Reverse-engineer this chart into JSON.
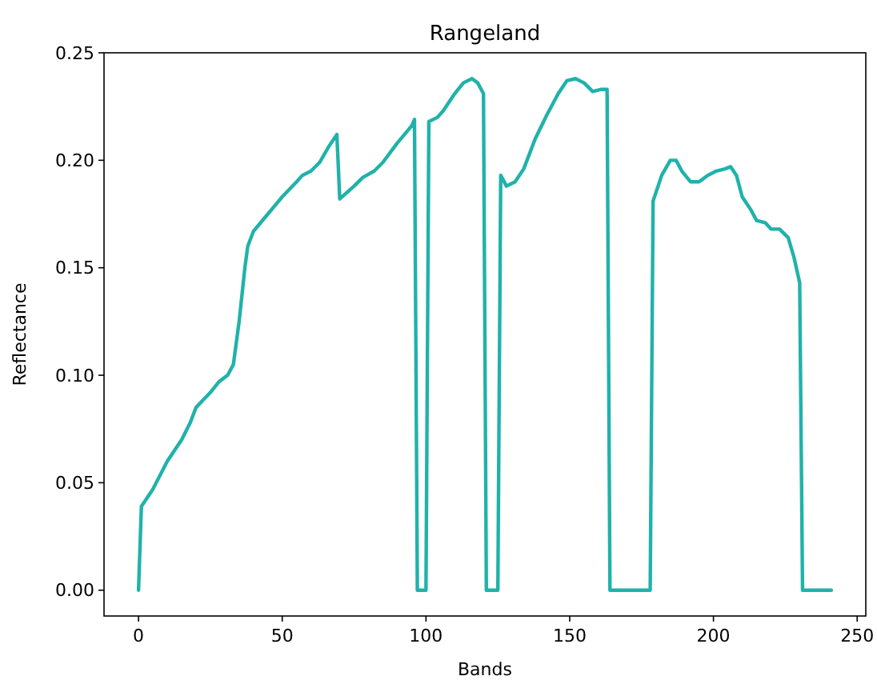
{
  "chart_data": {
    "type": "line",
    "title": "Rangeland",
    "xlabel": "Bands",
    "ylabel": "Reflectance",
    "xlim": [
      -12,
      253
    ],
    "ylim": [
      -0.012,
      0.25
    ],
    "xticks": [
      0,
      50,
      100,
      150,
      200,
      250
    ],
    "yticks": [
      {
        "value": 0,
        "label": "0.00"
      },
      {
        "value": 0.05,
        "label": "0.05"
      },
      {
        "value": 0.1,
        "label": "0.10"
      },
      {
        "value": 0.15,
        "label": "0.15"
      },
      {
        "value": 0.2,
        "label": "0.20"
      },
      {
        "value": 0.25,
        "label": "0.25"
      }
    ],
    "grid": false,
    "marker": "none",
    "line_style": "solid",
    "series": [
      {
        "color": "#20b2aa",
        "x": [
          0,
          1,
          5,
          10,
          15,
          18,
          20,
          25,
          28,
          31,
          33,
          35,
          37,
          38,
          40,
          45,
          50,
          55,
          57,
          60,
          63,
          66,
          69,
          70,
          75,
          78,
          82,
          85,
          90,
          95,
          96,
          97,
          100,
          101,
          104,
          106,
          110,
          113,
          116,
          118,
          120,
          121,
          125,
          126,
          128,
          131,
          134,
          138,
          142,
          146,
          149,
          152,
          155,
          158,
          161,
          163,
          164,
          178,
          179,
          182,
          185,
          187,
          189,
          192,
          195,
          198,
          201,
          204,
          206,
          208,
          210,
          213,
          215,
          218,
          220,
          223,
          226,
          228,
          230,
          231,
          241
        ],
        "values": [
          0,
          0.039,
          0.047,
          0.06,
          0.07,
          0.078,
          0.085,
          0.092,
          0.097,
          0.1,
          0.105,
          0.125,
          0.15,
          0.16,
          0.167,
          0.175,
          0.183,
          0.19,
          0.193,
          0.195,
          0.199,
          0.206,
          0.212,
          0.182,
          0.188,
          0.192,
          0.195,
          0.199,
          0.208,
          0.216,
          0.219,
          0,
          0,
          0.218,
          0.22,
          0.223,
          0.231,
          0.236,
          0.238,
          0.236,
          0.231,
          0,
          0,
          0.193,
          0.188,
          0.19,
          0.196,
          0.21,
          0.221,
          0.231,
          0.237,
          0.238,
          0.236,
          0.232,
          0.233,
          0.233,
          0,
          0,
          0.181,
          0.193,
          0.2,
          0.2,
          0.195,
          0.19,
          0.19,
          0.193,
          0.195,
          0.196,
          0.197,
          0.193,
          0.183,
          0.177,
          0.172,
          0.171,
          0.168,
          0.168,
          0.164,
          0.155,
          0.143,
          0,
          0
        ]
      }
    ]
  }
}
